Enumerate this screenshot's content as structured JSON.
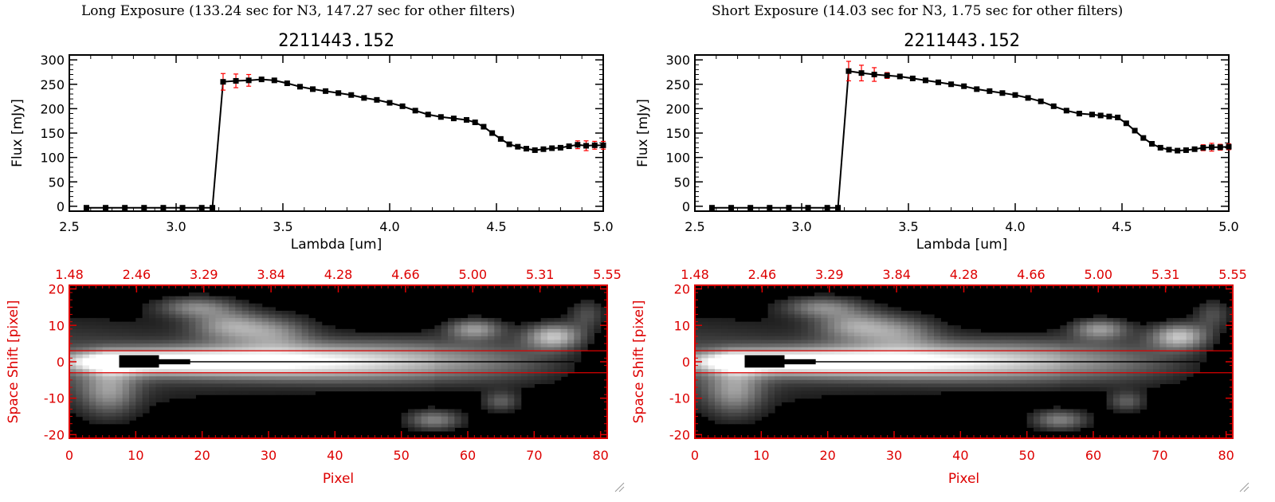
{
  "panels": [
    {
      "heading": "Long Exposure (133.24 sec for N3, 147.27 sec for other filters)"
    },
    {
      "heading": "Short Exposure (14.03 sec for N3, 1.75 sec for other filters)"
    }
  ],
  "colors": {
    "axis": "#000000",
    "spectrum_line": "#000000",
    "error_bar": "#ff0000",
    "marker": "#000000",
    "accent_red": "#dd0000",
    "image_background": "#000000"
  },
  "chart_data": [
    {
      "type": "line",
      "title": "2211443.152",
      "xlabel": "Lambda [um]",
      "ylabel": "Flux [mJy]",
      "xlim": [
        2.5,
        5.0
      ],
      "ylim": [
        -10,
        310
      ],
      "xticks": [
        "2.5",
        "3.0",
        "3.5",
        "4.0",
        "4.5",
        "5.0"
      ],
      "yticks": [
        "0",
        "50",
        "100",
        "150",
        "200",
        "250",
        "300"
      ],
      "grid": false,
      "series": [
        {
          "x": [
            2.58,
            2.67,
            2.76,
            2.85,
            2.94,
            3.03,
            3.12,
            3.17,
            3.22,
            3.28,
            3.34,
            3.4,
            3.46,
            3.52,
            3.58,
            3.64,
            3.7,
            3.76,
            3.82,
            3.88,
            3.94,
            4.0,
            4.06,
            4.12,
            4.18,
            4.24,
            4.3,
            4.36,
            4.4,
            4.44,
            4.48,
            4.52,
            4.56,
            4.6,
            4.64,
            4.68,
            4.72,
            4.76,
            4.8,
            4.84,
            4.88,
            4.92,
            4.96,
            5.0
          ],
          "y": [
            -3,
            -3,
            -3,
            -3,
            -3,
            -3,
            -3,
            -3,
            255,
            257,
            258,
            260,
            258,
            252,
            245,
            240,
            236,
            232,
            228,
            222,
            218,
            212,
            205,
            196,
            188,
            183,
            180,
            177,
            172,
            163,
            150,
            138,
            127,
            122,
            118,
            115,
            117,
            119,
            120,
            123,
            126,
            124,
            125,
            125
          ],
          "err": [
            2,
            2,
            2,
            2,
            2,
            2,
            2,
            2,
            17,
            14,
            12,
            4,
            4,
            4,
            4,
            4,
            4,
            4,
            4,
            4,
            4,
            4,
            4,
            4,
            4,
            4,
            4,
            4,
            4,
            4,
            4,
            4,
            4,
            4,
            4,
            4,
            4,
            4,
            4,
            4,
            8,
            10,
            8,
            8
          ]
        }
      ]
    },
    {
      "type": "heatmap",
      "xlabel": "Pixel",
      "ylabel": "Space Shift [pixel]",
      "xlim": [
        0,
        81
      ],
      "ylim": [
        -21,
        21
      ],
      "xticks": [
        "0",
        "10",
        "20",
        "30",
        "40",
        "50",
        "60",
        "70",
        "80"
      ],
      "yticks": [
        "-20",
        "-10",
        "0",
        "10",
        "20"
      ],
      "top_ticks": [
        "1.48",
        "2.46",
        "3.29",
        "3.84",
        "4.28",
        "4.66",
        "5.00",
        "5.31",
        "5.55"
      ],
      "aperture": [
        -3,
        3
      ]
    },
    {
      "type": "line",
      "title": "2211443.152",
      "xlabel": "Lambda [um]",
      "ylabel": "Flux [mJy]",
      "xlim": [
        2.5,
        5.0
      ],
      "ylim": [
        -10,
        310
      ],
      "xticks": [
        "2.5",
        "3.0",
        "3.5",
        "4.0",
        "4.5",
        "5.0"
      ],
      "yticks": [
        "0",
        "50",
        "100",
        "150",
        "200",
        "250",
        "300"
      ],
      "grid": false,
      "series": [
        {
          "x": [
            2.58,
            2.67,
            2.76,
            2.85,
            2.94,
            3.03,
            3.12,
            3.17,
            3.22,
            3.28,
            3.34,
            3.4,
            3.46,
            3.52,
            3.58,
            3.64,
            3.7,
            3.76,
            3.82,
            3.88,
            3.94,
            4.0,
            4.06,
            4.12,
            4.18,
            4.24,
            4.3,
            4.36,
            4.4,
            4.44,
            4.48,
            4.52,
            4.56,
            4.6,
            4.64,
            4.68,
            4.72,
            4.76,
            4.8,
            4.84,
            4.88,
            4.92,
            4.96,
            5.0
          ],
          "y": [
            -3,
            -3,
            -3,
            -3,
            -3,
            -3,
            -3,
            -3,
            277,
            273,
            270,
            268,
            266,
            262,
            258,
            254,
            250,
            246,
            240,
            236,
            232,
            228,
            222,
            215,
            205,
            196,
            190,
            188,
            186,
            184,
            182,
            170,
            155,
            140,
            128,
            120,
            116,
            114,
            115,
            117,
            120,
            121,
            121,
            122
          ],
          "err": [
            2,
            2,
            2,
            2,
            2,
            2,
            2,
            2,
            20,
            16,
            14,
            6,
            4,
            4,
            4,
            4,
            4,
            4,
            4,
            4,
            4,
            4,
            4,
            4,
            4,
            4,
            4,
            4,
            4,
            4,
            4,
            4,
            4,
            4,
            4,
            4,
            4,
            4,
            4,
            4,
            6,
            8,
            6,
            6
          ]
        }
      ]
    },
    {
      "type": "heatmap",
      "xlabel": "Pixel",
      "ylabel": "Space Shift [pixel]",
      "xlim": [
        0,
        81
      ],
      "ylim": [
        -21,
        21
      ],
      "xticks": [
        "0",
        "10",
        "20",
        "30",
        "40",
        "50",
        "60",
        "70",
        "80"
      ],
      "yticks": [
        "-20",
        "-10",
        "0",
        "10",
        "20"
      ],
      "top_ticks": [
        "1.48",
        "2.46",
        "3.29",
        "3.84",
        "4.28",
        "4.66",
        "5.00",
        "5.31",
        "5.55"
      ],
      "aperture": [
        -3,
        3
      ]
    }
  ]
}
